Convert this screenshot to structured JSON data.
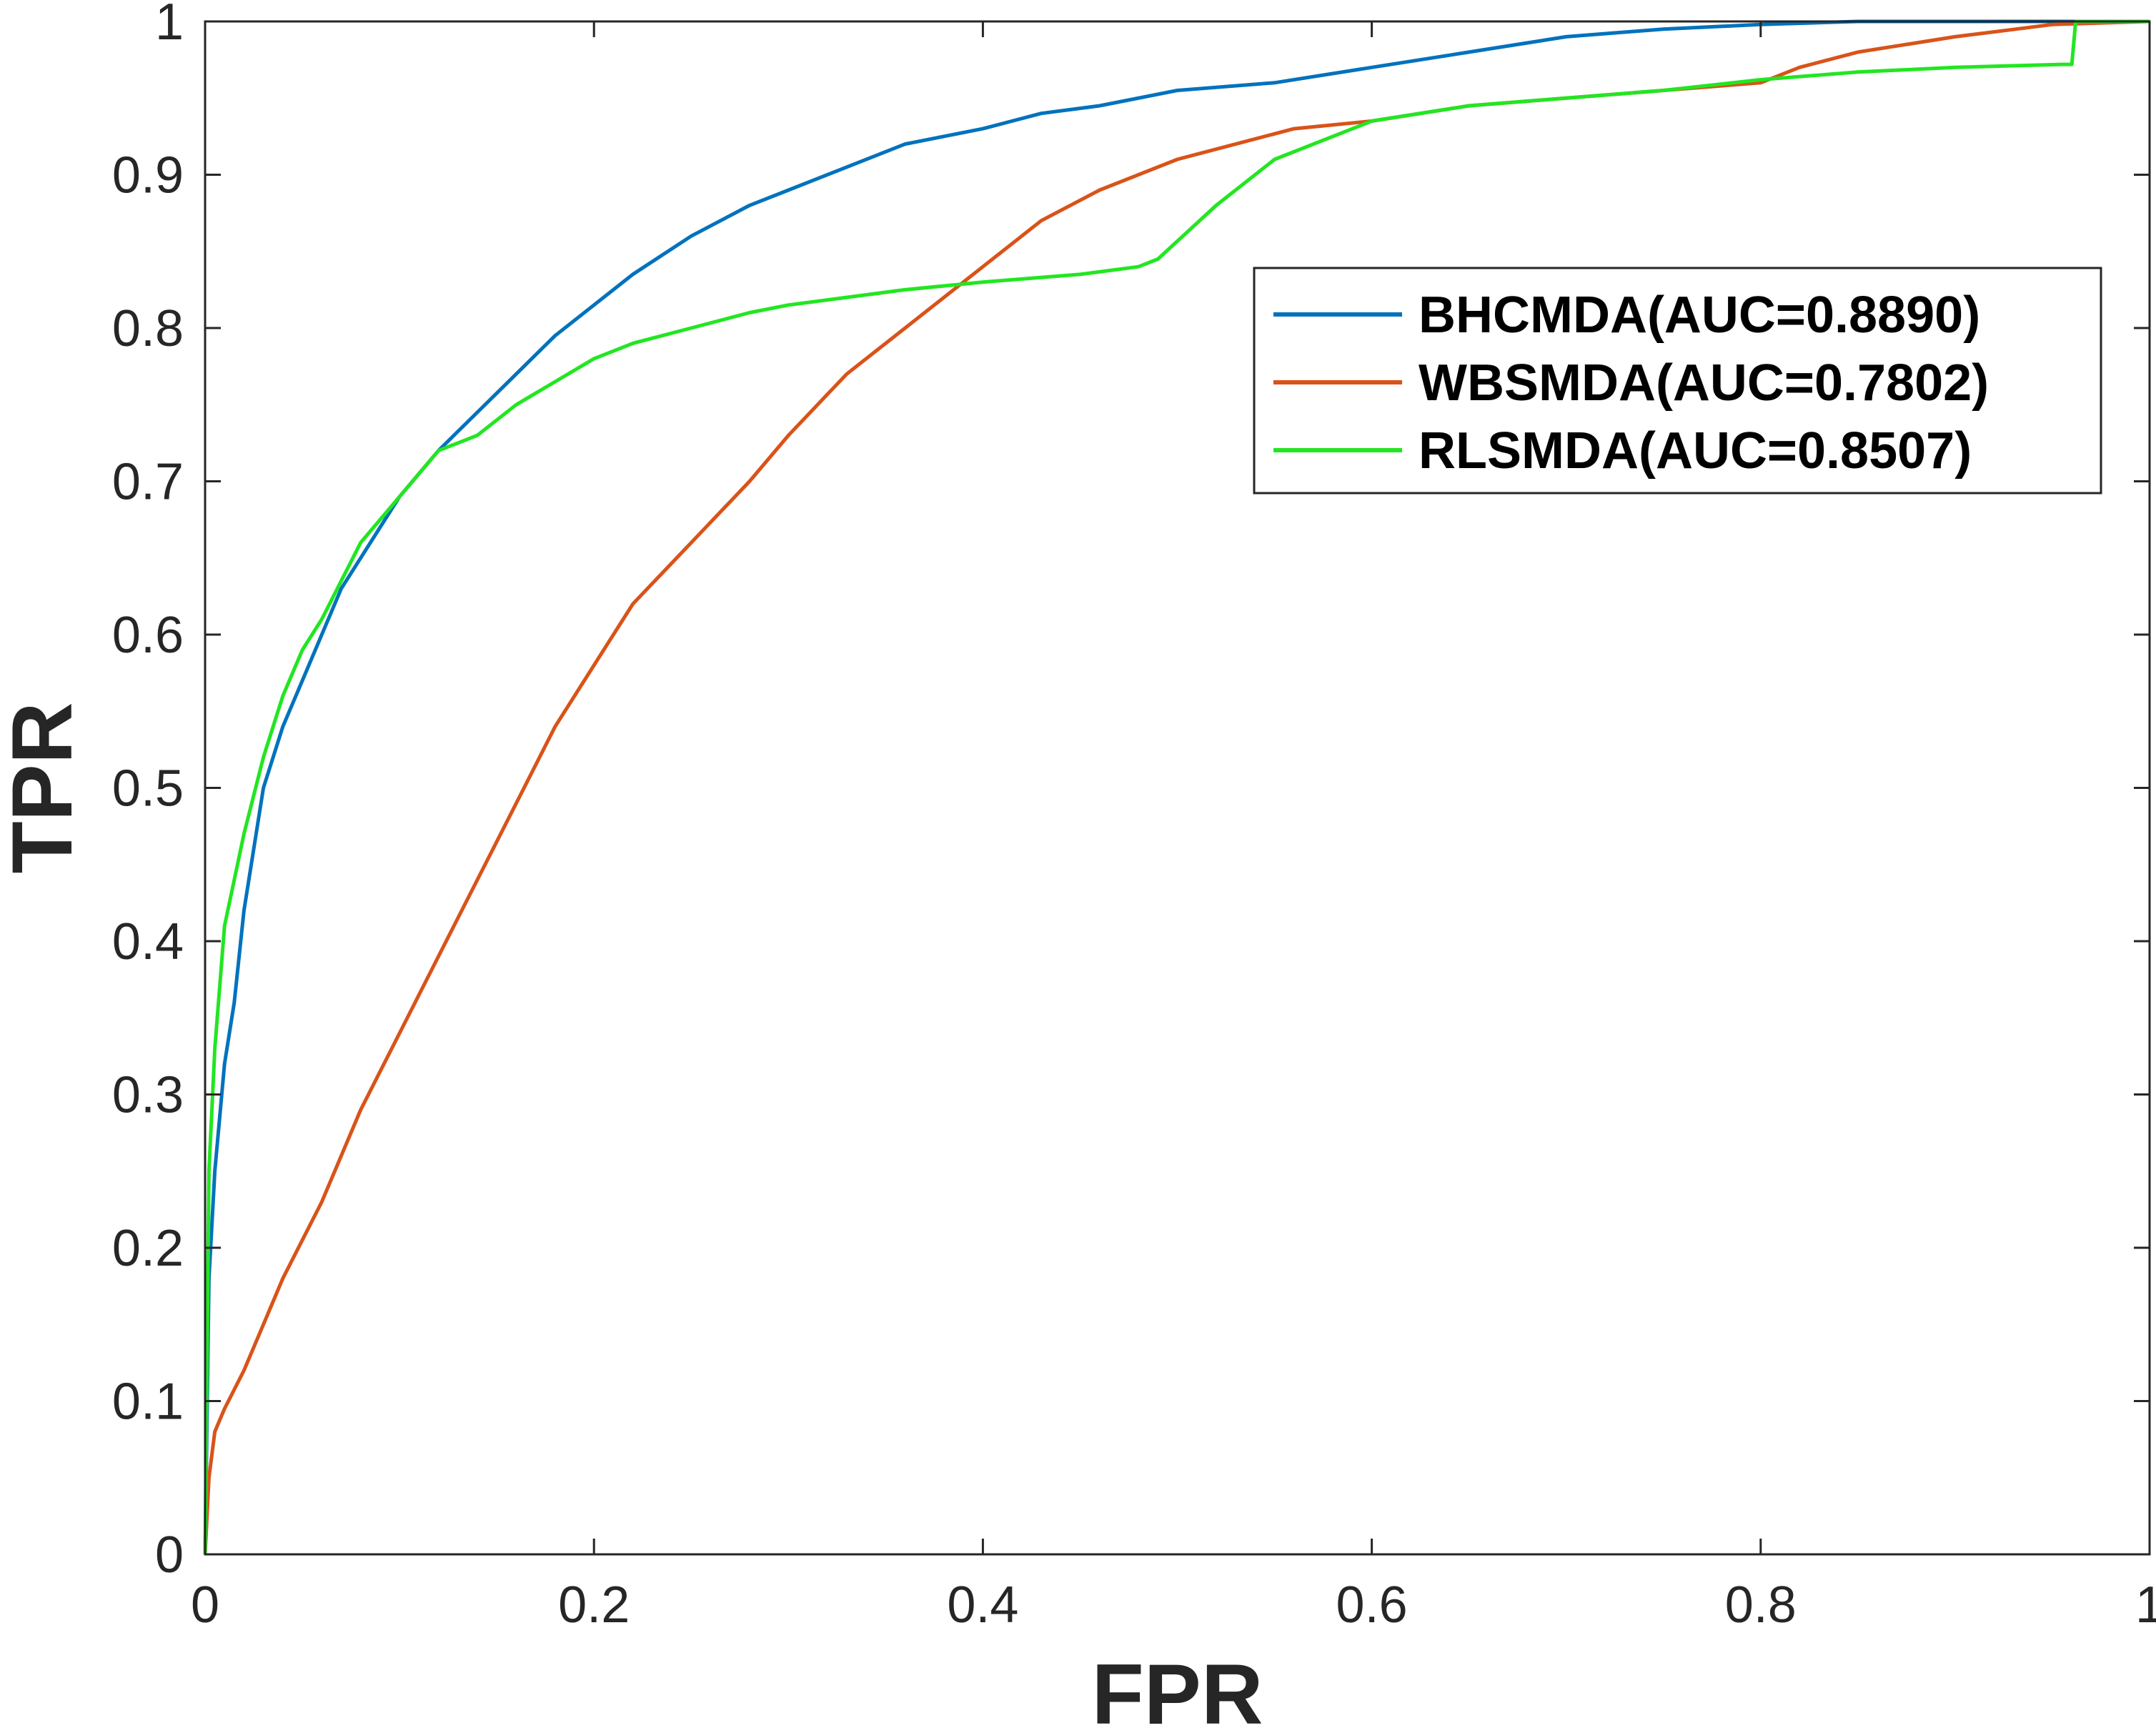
{
  "chart_data": {
    "type": "line",
    "xlabel": "FPR",
    "ylabel": "TPR",
    "xlim": [
      0,
      1
    ],
    "ylim": [
      0,
      1
    ],
    "xticks": [
      "0",
      "0.2",
      "0.4",
      "0.6",
      "0.8",
      "1"
    ],
    "yticks": [
      "0",
      "0.1",
      "0.2",
      "0.3",
      "0.4",
      "0.5",
      "0.6",
      "0.7",
      "0.8",
      "0.9",
      "1"
    ],
    "grid": false,
    "box": true,
    "legend_position": "top-right",
    "series": [
      {
        "name": "BHCMDA(AUC=0.8890)",
        "color": "#0072BD",
        "x": [
          0,
          0.002,
          0.005,
          0.01,
          0.015,
          0.02,
          0.03,
          0.04,
          0.05,
          0.06,
          0.07,
          0.08,
          0.1,
          0.12,
          0.14,
          0.16,
          0.18,
          0.2,
          0.22,
          0.25,
          0.28,
          0.3,
          0.33,
          0.36,
          0.4,
          0.43,
          0.46,
          0.5,
          0.55,
          0.6,
          0.65,
          0.7,
          0.75,
          0.8,
          0.85,
          0.9,
          0.95,
          1
        ],
        "y": [
          0,
          0.18,
          0.25,
          0.32,
          0.36,
          0.42,
          0.5,
          0.54,
          0.57,
          0.6,
          0.63,
          0.65,
          0.69,
          0.72,
          0.745,
          0.77,
          0.795,
          0.815,
          0.835,
          0.86,
          0.88,
          0.89,
          0.905,
          0.92,
          0.93,
          0.94,
          0.945,
          0.955,
          0.96,
          0.97,
          0.98,
          0.99,
          0.995,
          0.998,
          1,
          1,
          1,
          1
        ]
      },
      {
        "name": "WBSMDA(AUC=0.7802)",
        "color": "#D95319",
        "x": [
          0,
          0.002,
          0.005,
          0.01,
          0.02,
          0.03,
          0.04,
          0.06,
          0.08,
          0.1,
          0.12,
          0.14,
          0.16,
          0.18,
          0.2,
          0.22,
          0.25,
          0.28,
          0.3,
          0.33,
          0.36,
          0.4,
          0.43,
          0.46,
          0.5,
          0.53,
          0.56,
          0.6,
          0.65,
          0.7,
          0.75,
          0.8,
          0.82,
          0.85,
          0.9,
          0.95,
          1
        ],
        "y": [
          0,
          0.05,
          0.08,
          0.095,
          0.12,
          0.15,
          0.18,
          0.23,
          0.29,
          0.34,
          0.39,
          0.44,
          0.49,
          0.54,
          0.58,
          0.62,
          0.66,
          0.7,
          0.73,
          0.77,
          0.8,
          0.84,
          0.87,
          0.89,
          0.91,
          0.92,
          0.93,
          0.935,
          0.945,
          0.95,
          0.955,
          0.96,
          0.97,
          0.98,
          0.99,
          0.998,
          1
        ]
      },
      {
        "name": "RLSMDA(AUC=0.8507)",
        "color": "#22E622",
        "x": [
          0,
          0.002,
          0.005,
          0.01,
          0.02,
          0.03,
          0.04,
          0.05,
          0.06,
          0.08,
          0.1,
          0.12,
          0.14,
          0.16,
          0.18,
          0.2,
          0.22,
          0.25,
          0.28,
          0.3,
          0.33,
          0.36,
          0.4,
          0.45,
          0.48,
          0.49,
          0.52,
          0.55,
          0.6,
          0.65,
          0.7,
          0.75,
          0.8,
          0.85,
          0.9,
          0.955,
          0.96,
          0.962,
          0.97,
          1
        ],
        "y": [
          0,
          0.25,
          0.33,
          0.41,
          0.47,
          0.52,
          0.56,
          0.59,
          0.61,
          0.66,
          0.69,
          0.72,
          0.73,
          0.75,
          0.765,
          0.78,
          0.79,
          0.8,
          0.81,
          0.815,
          0.82,
          0.825,
          0.83,
          0.835,
          0.84,
          0.845,
          0.88,
          0.91,
          0.935,
          0.945,
          0.95,
          0.955,
          0.962,
          0.967,
          0.97,
          0.972,
          0.972,
          1,
          1,
          1
        ]
      }
    ]
  }
}
